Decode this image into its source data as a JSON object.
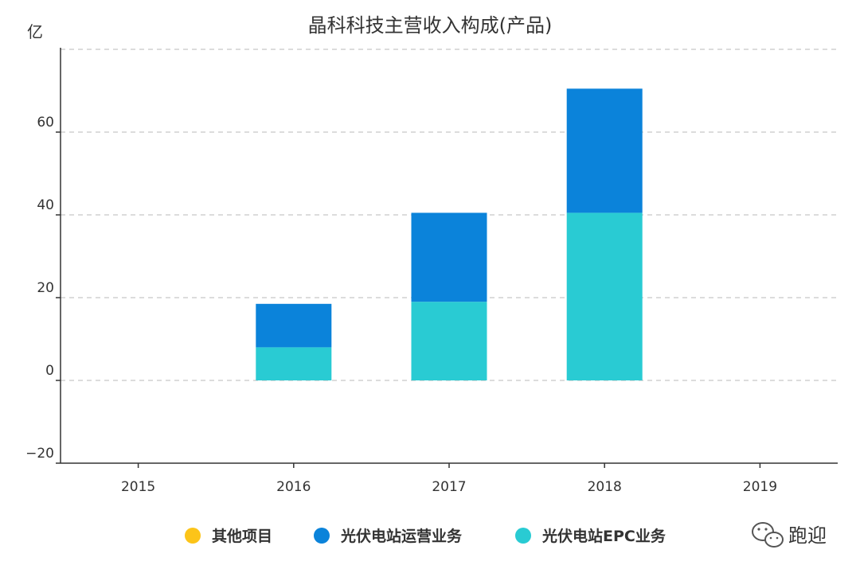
{
  "chart_data": {
    "type": "bar",
    "stacked": true,
    "title": "晶科科技主营收入构成(产品)",
    "unit_label": "亿",
    "categories": [
      "2015",
      "2016",
      "2017",
      "2018",
      "2019"
    ],
    "series": [
      {
        "name": "其他项目",
        "color": "#FCC419",
        "values": [
          0,
          0,
          0,
          0,
          0
        ]
      },
      {
        "name": "光伏电站EPC业务",
        "color": "#29CBD3",
        "values": [
          0,
          8,
          19,
          40.5,
          0
        ]
      },
      {
        "name": "光伏电站运营业务",
        "color": "#0B83DA",
        "values": [
          0,
          10.5,
          21.5,
          30,
          0
        ]
      }
    ],
    "legend_order": [
      "其他项目",
      "光伏电站运营业务",
      "光伏电站EPC业务"
    ],
    "ylim": [
      -20,
      80
    ],
    "yticks": [
      -20,
      0,
      20,
      40,
      60
    ],
    "grid": "horizontal dashed",
    "legend_position": "bottom"
  },
  "watermark": {
    "text": "跑迎",
    "icon": "wechat-icon"
  }
}
